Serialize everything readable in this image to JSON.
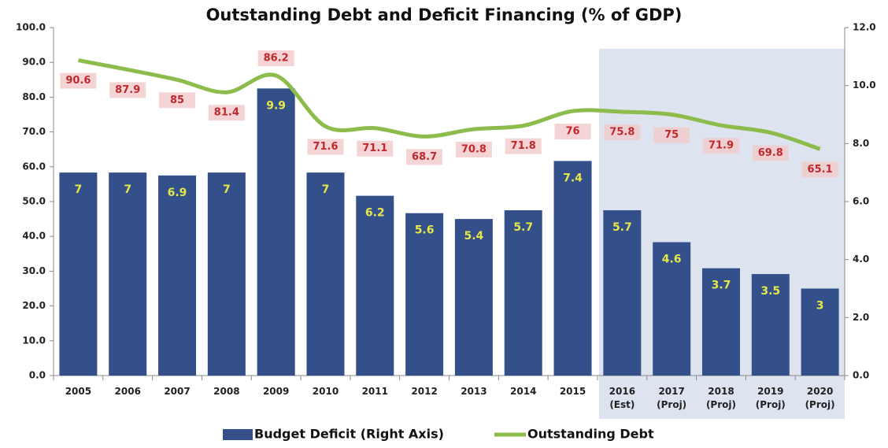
{
  "chart_data": {
    "type": "bar-line",
    "title": "Outstanding Debt and Deficit Financing (% of GDP)",
    "categories": [
      "2005",
      "2006",
      "2007",
      "2008",
      "2009",
      "2010",
      "2011",
      "2012",
      "2013",
      "2014",
      "2015",
      "2016\n(Est)",
      "2017\n(Proj)",
      "2018\n(Proj)",
      "2019\n(Proj)",
      "2020\n(Proj)"
    ],
    "series": [
      {
        "name": "Budget Deficit (Right Axis)",
        "color": "#34508a",
        "axis": "y2",
        "kind": "bar",
        "values": [
          7.0,
          7.0,
          6.9,
          7.0,
          9.9,
          7.0,
          6.2,
          5.6,
          5.4,
          5.7,
          7.4,
          5.7,
          4.6,
          3.7,
          3.5,
          3.0
        ]
      },
      {
        "name": "Outstanding Debt",
        "color": "#8dbb4c",
        "axis": "y",
        "kind": "line",
        "values": [
          90.6,
          87.9,
          85.0,
          81.4,
          86.2,
          71.6,
          71.1,
          68.7,
          70.8,
          71.8,
          76.0,
          75.8,
          75.0,
          71.9,
          69.8,
          65.1
        ]
      }
    ],
    "ylim": [
      0,
      100
    ],
    "yticks": [
      {
        "value": 0,
        "label": "0.0"
      },
      {
        "value": 10,
        "label": "10.0"
      },
      {
        "value": 20,
        "label": "20.0"
      },
      {
        "value": 30,
        "label": "30.0"
      },
      {
        "value": 40,
        "label": "40.0"
      },
      {
        "value": 50,
        "label": "50.0"
      },
      {
        "value": 60,
        "label": "60.0"
      },
      {
        "value": 70,
        "label": "70.0"
      },
      {
        "value": 80,
        "label": "80.0"
      },
      {
        "value": 90,
        "label": "90.0"
      },
      {
        "value": 100,
        "label": "100.0"
      }
    ],
    "y2lim": [
      0,
      12
    ],
    "y2ticks": [
      {
        "value": 0,
        "label": "0.0"
      },
      {
        "value": 2,
        "label": "2.0"
      },
      {
        "value": 4,
        "label": "4.0"
      },
      {
        "value": 6,
        "label": "6.0"
      },
      {
        "value": 8,
        "label": "8.0"
      },
      {
        "value": 10,
        "label": "10.0"
      },
      {
        "value": 12,
        "label": "12.0"
      }
    ]
  }
}
